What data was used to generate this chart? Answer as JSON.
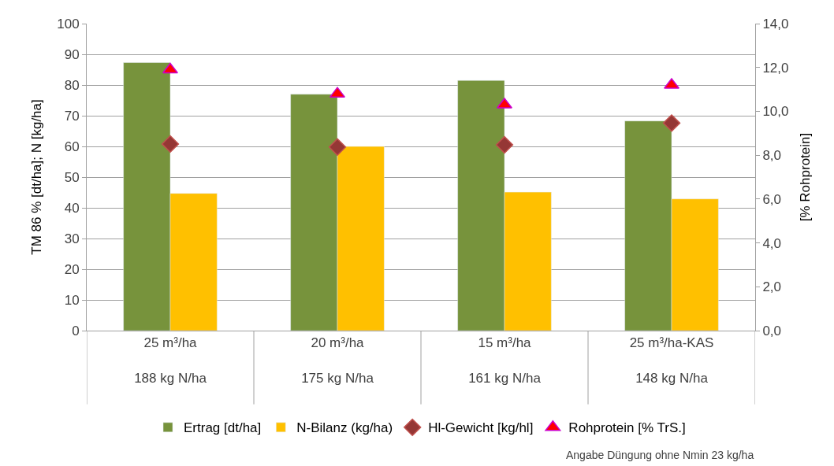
{
  "chart_data": {
    "type": "bar",
    "categories": [
      "25 m³/ha\n188 kg N/ha",
      "20 m³/ha\n175 kg N/ha",
      "15 m³/ha\n161 kg N/ha",
      "25 m³/ha-KAS\n148 kg N/ha"
    ],
    "series": [
      {
        "name": "Ertrag [dt/ha]",
        "color": "#77933c",
        "values": [
          87.3,
          77.0,
          81.5,
          68.3
        ]
      },
      {
        "name": "N-Bilanz (kg/ha)",
        "color": "#ffc000",
        "values": [
          44.7,
          60.0,
          45.1,
          42.9
        ]
      },
      {
        "name": "Hl-Gewicht [kg/hl]",
        "type": "scatter",
        "marker": "diamond",
        "color": "#953735",
        "values": [
          60.8,
          59.8,
          60.5,
          67.6
        ]
      },
      {
        "name": "Rohprotein [% TrS.]",
        "type": "scatter",
        "marker": "triangle",
        "axis": "y2",
        "color": "#ff0000",
        "values": [
          11.9,
          10.8,
          10.3,
          11.2
        ]
      }
    ],
    "ylabel": "TM 86 % [dt/ha]; N [kg/ha]",
    "y2label": "[% Rohprotein]",
    "ylim": [
      0,
      100
    ],
    "yticks": [
      0,
      10,
      20,
      30,
      40,
      50,
      60,
      70,
      80,
      90,
      100
    ],
    "y2lim": [
      0,
      14
    ],
    "y2ticks": [
      {
        "value": 0,
        "label": "0,0"
      },
      {
        "value": 2,
        "label": "2,0"
      },
      {
        "value": 4,
        "label": "4,0"
      },
      {
        "value": 6,
        "label": "6,0"
      },
      {
        "value": 8,
        "label": "8,0"
      },
      {
        "value": 10,
        "label": "10,0"
      },
      {
        "value": 12,
        "label": "12,0"
      },
      {
        "value": 14,
        "label": "14,0"
      }
    ],
    "grid": "y",
    "legend": "bottom",
    "annotations": [
      "Angabe Düngung ohne Nmin 23 kg/ha"
    ]
  }
}
